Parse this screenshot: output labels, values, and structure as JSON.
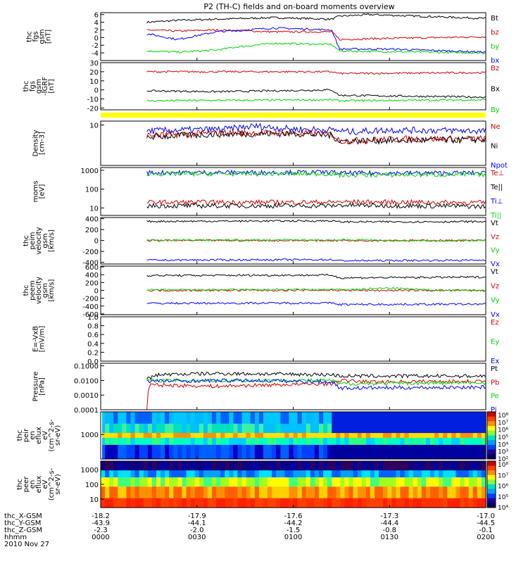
{
  "title": "P2 (TH-C) fields and on-board moments overview",
  "footer": {
    "rows": [
      {
        "label": "thc_X-GSM",
        "values": [
          "-18.2",
          "-17.9",
          "-17.6",
          "-17.3",
          "-17.0"
        ]
      },
      {
        "label": "thc_Y-GSM",
        "values": [
          "-43.9",
          "-44.1",
          "-44.2",
          "-44.4",
          "-44.5"
        ]
      },
      {
        "label": "thc_Z-GSM",
        "values": [
          "-2.3",
          "-2.0",
          "-1.5",
          "-0.8",
          "-0.1"
        ]
      },
      {
        "label": "hhmm",
        "values": [
          "0000",
          "0030",
          "0100",
          "0130",
          "0200"
        ]
      }
    ],
    "date": "2010 Nov 27"
  },
  "colors": {
    "black": "#000000",
    "red": "#d40000",
    "green": "#00d400",
    "blue": "#0000ff",
    "yellow": "#ffff00"
  },
  "chart_data": [
    {
      "type": "line",
      "ylabel": [
        "thc",
        "fgs",
        "gsm",
        "[nT]"
      ],
      "yticks": [
        "6",
        "4",
        "2",
        "0",
        "-2",
        "-4"
      ],
      "ylim": [
        -6,
        6.5
      ],
      "log": false,
      "x": [
        "0000",
        "0030",
        "0100",
        "0130",
        "0200"
      ],
      "series": [
        {
          "name": "Bt",
          "color": "#000000",
          "samples": [
            [
              0.12,
              4
            ],
            [
              0.2,
              4.5
            ],
            [
              0.3,
              4.8
            ],
            [
              0.45,
              5.2
            ],
            [
              0.6,
              4.8
            ],
            [
              0.62,
              5.6
            ],
            [
              0.7,
              6
            ],
            [
              1,
              5
            ]
          ]
        },
        {
          "name": "bz",
          "color": "#d40000",
          "samples": [
            [
              0.12,
              2
            ],
            [
              0.2,
              1.7
            ],
            [
              0.3,
              2
            ],
            [
              0.45,
              1.5
            ],
            [
              0.6,
              1.5
            ],
            [
              0.62,
              -0.5
            ],
            [
              0.7,
              -0.3
            ],
            [
              1,
              0.2
            ]
          ]
        },
        {
          "name": "by",
          "color": "#00d400",
          "samples": [
            [
              0.12,
              -3.5
            ],
            [
              0.2,
              -3.8
            ],
            [
              0.3,
              -3.3
            ],
            [
              0.35,
              -2.5
            ],
            [
              0.45,
              -1.5
            ],
            [
              0.6,
              -1.8
            ],
            [
              0.62,
              -3.5
            ],
            [
              1,
              -4
            ]
          ]
        },
        {
          "name": "bx",
          "color": "#0000ff",
          "samples": [
            [
              0.12,
              1
            ],
            [
              0.2,
              -0.5
            ],
            [
              0.3,
              1.5
            ],
            [
              0.45,
              2.5
            ],
            [
              0.6,
              2
            ],
            [
              0.62,
              -3
            ],
            [
              0.75,
              -3
            ],
            [
              1,
              -3.8
            ]
          ]
        }
      ]
    },
    {
      "type": "line",
      "ylabel": [
        "thc",
        "fgs",
        "gsm",
        "-IGRF",
        "[nT]"
      ],
      "yticks": [
        "30",
        "20",
        "10",
        "0",
        "-10",
        "-20"
      ],
      "ylim": [
        -22,
        30
      ],
      "log": false,
      "series": [
        {
          "name": "Bz",
          "color": "#d40000",
          "samples": [
            [
              0.12,
              20
            ],
            [
              0.6,
              20
            ],
            [
              0.62,
              18
            ],
            [
              1,
              19
            ]
          ]
        },
        {
          "name": "Bx",
          "color": "#000000",
          "samples": [
            [
              0.12,
              -1
            ],
            [
              0.3,
              -2
            ],
            [
              0.6,
              0
            ],
            [
              0.62,
              -6
            ],
            [
              1,
              -8
            ]
          ]
        },
        {
          "name": "By",
          "color": "#00d400",
          "samples": [
            [
              0.12,
              -12
            ],
            [
              0.6,
              -11
            ],
            [
              0.62,
              -12
            ],
            [
              1,
              -11
            ]
          ]
        }
      ]
    },
    {
      "type": "line",
      "ylabel": [
        "Density",
        "[cm-3]"
      ],
      "yticks": [
        "10"
      ],
      "ylim": [
        0.3,
        14
      ],
      "log": true,
      "series": [
        {
          "name": "Ne",
          "color": "#d40000",
          "samples": [
            [
              0.12,
              4
            ],
            [
              0.3,
              5
            ],
            [
              0.5,
              5
            ],
            [
              0.6,
              4.5
            ],
            [
              0.62,
              2.5
            ],
            [
              0.8,
              3
            ],
            [
              1,
              3
            ]
          ]
        },
        {
          "name": "Ni",
          "color": "#000000",
          "samples": [
            [
              0.12,
              3.5
            ],
            [
              0.3,
              4.5
            ],
            [
              0.5,
              4.8
            ],
            [
              0.6,
              4
            ],
            [
              0.62,
              2.5
            ],
            [
              1,
              2.8
            ]
          ]
        },
        {
          "name": "Npot",
          "color": "#0000ff",
          "samples": [
            [
              0.12,
              6
            ],
            [
              0.33,
              7
            ],
            [
              0.4,
              9
            ],
            [
              0.5,
              7
            ],
            [
              0.6,
              6.5
            ],
            [
              0.65,
              5.5
            ],
            [
              0.75,
              6.5
            ],
            [
              1,
              6
            ]
          ]
        }
      ]
    },
    {
      "type": "line",
      "ylabel": [
        "moms",
        "[eV]"
      ],
      "yticks": [
        "1000",
        "100",
        "10"
      ],
      "ylim": [
        4,
        1400
      ],
      "log": true,
      "series": [
        {
          "name": "Te⊥",
          "color": "#d40000",
          "samples": [
            [
              0.12,
              20
            ],
            [
              0.6,
              20
            ],
            [
              0.62,
              21
            ],
            [
              1,
              19
            ]
          ]
        },
        {
          "name": "Te||",
          "color": "#000000",
          "samples": [
            [
              0.12,
              13
            ],
            [
              0.6,
              13
            ],
            [
              0.62,
              14
            ],
            [
              1,
              12
            ]
          ]
        },
        {
          "name": "Ti⊥",
          "color": "#0000ff",
          "samples": [
            [
              0.12,
              750
            ],
            [
              0.6,
              780
            ],
            [
              0.62,
              700
            ],
            [
              1,
              720
            ]
          ]
        },
        {
          "name": "Ti||",
          "color": "#00d400",
          "samples": [
            [
              0.12,
              650
            ],
            [
              0.6,
              660
            ],
            [
              0.62,
              560
            ],
            [
              1,
              600
            ]
          ]
        }
      ]
    },
    {
      "type": "line",
      "ylabel": [
        "thc",
        "peim",
        "velocity",
        "gsm",
        "[km/s]"
      ],
      "yticks": [
        "400",
        "200",
        "0",
        "-200",
        "-400"
      ],
      "ylim": [
        -430,
        420
      ],
      "log": false,
      "series": [
        {
          "name": "Vt",
          "color": "#000000",
          "samples": [
            [
              0.12,
              350
            ],
            [
              0.6,
              360
            ],
            [
              0.62,
              340
            ],
            [
              1,
              345
            ]
          ]
        },
        {
          "name": "Vz",
          "color": "#d40000",
          "samples": [
            [
              0.12,
              0
            ],
            [
              1,
              0
            ]
          ]
        },
        {
          "name": "Vy",
          "color": "#00d400",
          "samples": [
            [
              0.12,
              5
            ],
            [
              0.7,
              10
            ],
            [
              0.8,
              -5
            ],
            [
              1,
              0
            ]
          ]
        },
        {
          "name": "Vx",
          "color": "#0000ff",
          "samples": [
            [
              0.12,
              -360
            ],
            [
              0.6,
              -350
            ],
            [
              0.62,
              -370
            ],
            [
              1,
              -360
            ]
          ]
        }
      ]
    },
    {
      "type": "line",
      "ylabel": [
        "thc",
        "peem",
        "velocity",
        "gsm",
        "[km/s]"
      ],
      "yticks": [
        "600",
        "400",
        "200",
        "0",
        "-200",
        "-400",
        "-600"
      ],
      "ylim": [
        -620,
        620
      ],
      "log": false,
      "series": [
        {
          "name": "Vt",
          "color": "#000000",
          "samples": [
            [
              0.12,
              380
            ],
            [
              0.6,
              390
            ],
            [
              0.62,
              320
            ],
            [
              1,
              340
            ]
          ]
        },
        {
          "name": "Vz",
          "color": "#d40000",
          "samples": [
            [
              0.12,
              0
            ],
            [
              0.6,
              5
            ],
            [
              0.7,
              0
            ],
            [
              1,
              0
            ]
          ]
        },
        {
          "name": "Vy",
          "color": "#00d400",
          "samples": [
            [
              0.12,
              10
            ],
            [
              0.65,
              20
            ],
            [
              0.75,
              60
            ],
            [
              0.85,
              10
            ],
            [
              1,
              0
            ]
          ]
        },
        {
          "name": "Vx",
          "color": "#0000ff",
          "samples": [
            [
              0.12,
              -330
            ],
            [
              0.6,
              -320
            ],
            [
              0.62,
              -360
            ],
            [
              1,
              -350
            ]
          ]
        }
      ]
    },
    {
      "type": "line",
      "ylabel": [
        "E=-VxB",
        "[mV/m]"
      ],
      "yticks": [
        "1.0",
        "0.8",
        "0.6",
        "0.4",
        "0.2",
        "0.0"
      ],
      "ylim": [
        0,
        1
      ],
      "log": false,
      "series": [
        {
          "name": "Ez",
          "color": "#d40000",
          "samples": []
        },
        {
          "name": "Ey",
          "color": "#00d400",
          "samples": []
        },
        {
          "name": "Ex",
          "color": "#0000ff",
          "samples": []
        }
      ]
    },
    {
      "type": "line",
      "ylabel": [
        "Pressure",
        "[nPa]"
      ],
      "yticks": [
        "0.1000",
        "0.0100",
        "0.0010",
        "0.0001"
      ],
      "ylim": [
        0.0001,
        0.15
      ],
      "log": true,
      "series": [
        {
          "name": "Pt",
          "color": "#000000",
          "samples": [
            [
              0.12,
              0.012
            ],
            [
              0.15,
              0.025
            ],
            [
              0.3,
              0.03
            ],
            [
              0.6,
              0.025
            ],
            [
              0.62,
              0.02
            ],
            [
              1,
              0.02
            ]
          ]
        },
        {
          "name": "Pb",
          "color": "#d40000",
          "samples": [
            [
              0.12,
              0.0001
            ],
            [
              0.13,
              0.005
            ],
            [
              0.3,
              0.004
            ],
            [
              0.6,
              0.006
            ],
            [
              0.62,
              0.01
            ],
            [
              0.7,
              0.008
            ],
            [
              1,
              0.009
            ]
          ]
        },
        {
          "name": "Pe",
          "color": "#00d400",
          "samples": [
            [
              0.12,
              0.01
            ],
            [
              0.6,
              0.01
            ],
            [
              0.62,
              0.006
            ],
            [
              1,
              0.007
            ]
          ]
        },
        {
          "name": "Pi",
          "color": "#0000ff",
          "samples": [
            [
              0.12,
              0.009
            ],
            [
              0.4,
              0.01
            ],
            [
              0.6,
              0.008
            ],
            [
              0.62,
              0.003
            ],
            [
              1,
              0.0035
            ]
          ]
        }
      ]
    },
    {
      "type": "heatmap",
      "ylabel": [
        "thc",
        "peir",
        "en",
        "eflux",
        "eV",
        "(cm^2-s-",
        "sr-eV)"
      ],
      "yticks": [
        "1000"
      ],
      "colorbar": [
        "10⁸",
        "10⁷",
        "10⁶",
        "10⁵",
        "10⁴",
        "10³",
        "10²"
      ],
      "bands": [
        {
          "from": 0.0,
          "to": 0.25,
          "colors": [
            "#00c8ff",
            "#00b8ff",
            "#0060ff"
          ]
        },
        {
          "from": 0.25,
          "to": 0.45,
          "colors": [
            "#00e0c0",
            "#40f0a0",
            "#00c0ff"
          ]
        },
        {
          "from": 0.45,
          "to": 0.55,
          "colors": [
            "#ffe000",
            "#ff9000",
            "#ffe000"
          ]
        },
        {
          "from": 0.55,
          "to": 0.7,
          "colors": [
            "#30ff80",
            "#00ffc0",
            "#00d0ff"
          ]
        },
        {
          "from": 0.7,
          "to": 1.0,
          "colors": [
            "#0040ff",
            "#0000c0",
            "#0060ff"
          ]
        }
      ],
      "transition_x": 0.6
    },
    {
      "type": "heatmap",
      "ylabel": [
        "thc",
        "peer",
        "en",
        "eflux",
        "eV",
        "(cm^2-s-",
        "sr-eV)"
      ],
      "yticks": [
        "1000",
        "100",
        "10"
      ],
      "colorbar": [
        "10⁸",
        "10⁷",
        "10⁶",
        "10⁵",
        "10⁴"
      ],
      "bands": [
        {
          "from": 0.0,
          "to": 0.2,
          "colors": [
            "#300060",
            "#100080",
            "#0000a0"
          ]
        },
        {
          "from": 0.2,
          "to": 0.35,
          "colors": [
            "#0060ff",
            "#00a0ff",
            "#00e0ff"
          ]
        },
        {
          "from": 0.35,
          "to": 0.55,
          "colors": [
            "#40ff80",
            "#a0ff20",
            "#ffff00"
          ]
        },
        {
          "from": 0.55,
          "to": 0.8,
          "colors": [
            "#ffd000",
            "#ff9000",
            "#ff6000"
          ]
        },
        {
          "from": 0.8,
          "to": 1.0,
          "colors": [
            "#ff3000",
            "#ff2000",
            "#ff4000"
          ]
        }
      ],
      "transition_x": 0.6
    }
  ]
}
